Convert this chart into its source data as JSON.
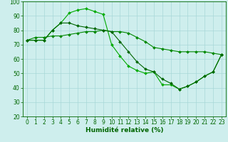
{
  "line1": {
    "x": [
      0,
      1,
      2,
      3,
      4,
      5,
      6,
      7,
      8,
      9,
      10,
      11,
      12,
      13,
      14,
      15,
      16,
      17,
      18,
      19,
      20,
      21,
      22,
      23
    ],
    "y": [
      73,
      75,
      75,
      76,
      76,
      77,
      78,
      79,
      79,
      80,
      79,
      79,
      78,
      75,
      72,
      68,
      67,
      66,
      65,
      65,
      65,
      65,
      64,
      63
    ],
    "color": "#008800",
    "marker": "D",
    "linewidth": 0.8,
    "markersize": 2.0
  },
  "line2": {
    "x": [
      0,
      1,
      2,
      3,
      4,
      5,
      6,
      7,
      8,
      9,
      10,
      11,
      12,
      13,
      14,
      15,
      16,
      17,
      18,
      19,
      20,
      21,
      22,
      23
    ],
    "y": [
      73,
      73,
      73,
      80,
      85,
      92,
      94,
      95,
      93,
      91,
      70,
      62,
      55,
      52,
      50,
      51,
      42,
      42,
      39,
      41,
      44,
      48,
      51,
      63
    ],
    "color": "#00aa00",
    "marker": "D",
    "linewidth": 0.8,
    "markersize": 2.0
  },
  "line3": {
    "x": [
      0,
      1,
      2,
      3,
      4,
      5,
      6,
      7,
      8,
      9,
      10,
      11,
      12,
      13,
      14,
      15,
      16,
      17,
      18,
      19,
      20,
      21,
      22,
      23
    ],
    "y": [
      73,
      73,
      73,
      80,
      85,
      85,
      83,
      82,
      81,
      80,
      79,
      72,
      65,
      58,
      53,
      51,
      46,
      43,
      39,
      41,
      44,
      48,
      51,
      63
    ],
    "color": "#006600",
    "marker": "D",
    "linewidth": 0.8,
    "markersize": 2.0
  },
  "xlabel": "Humidité relative (%)",
  "xlim": [
    -0.5,
    23.5
  ],
  "ylim": [
    20,
    100
  ],
  "yticks": [
    20,
    30,
    40,
    50,
    60,
    70,
    80,
    90,
    100
  ],
  "xticks": [
    0,
    1,
    2,
    3,
    4,
    5,
    6,
    7,
    8,
    9,
    10,
    11,
    12,
    13,
    14,
    15,
    16,
    17,
    18,
    19,
    20,
    21,
    22,
    23
  ],
  "bg_color": "#ceeeed",
  "grid_color": "#a8d8d8",
  "xlabel_fontsize": 6.5,
  "tick_fontsize": 5.5
}
